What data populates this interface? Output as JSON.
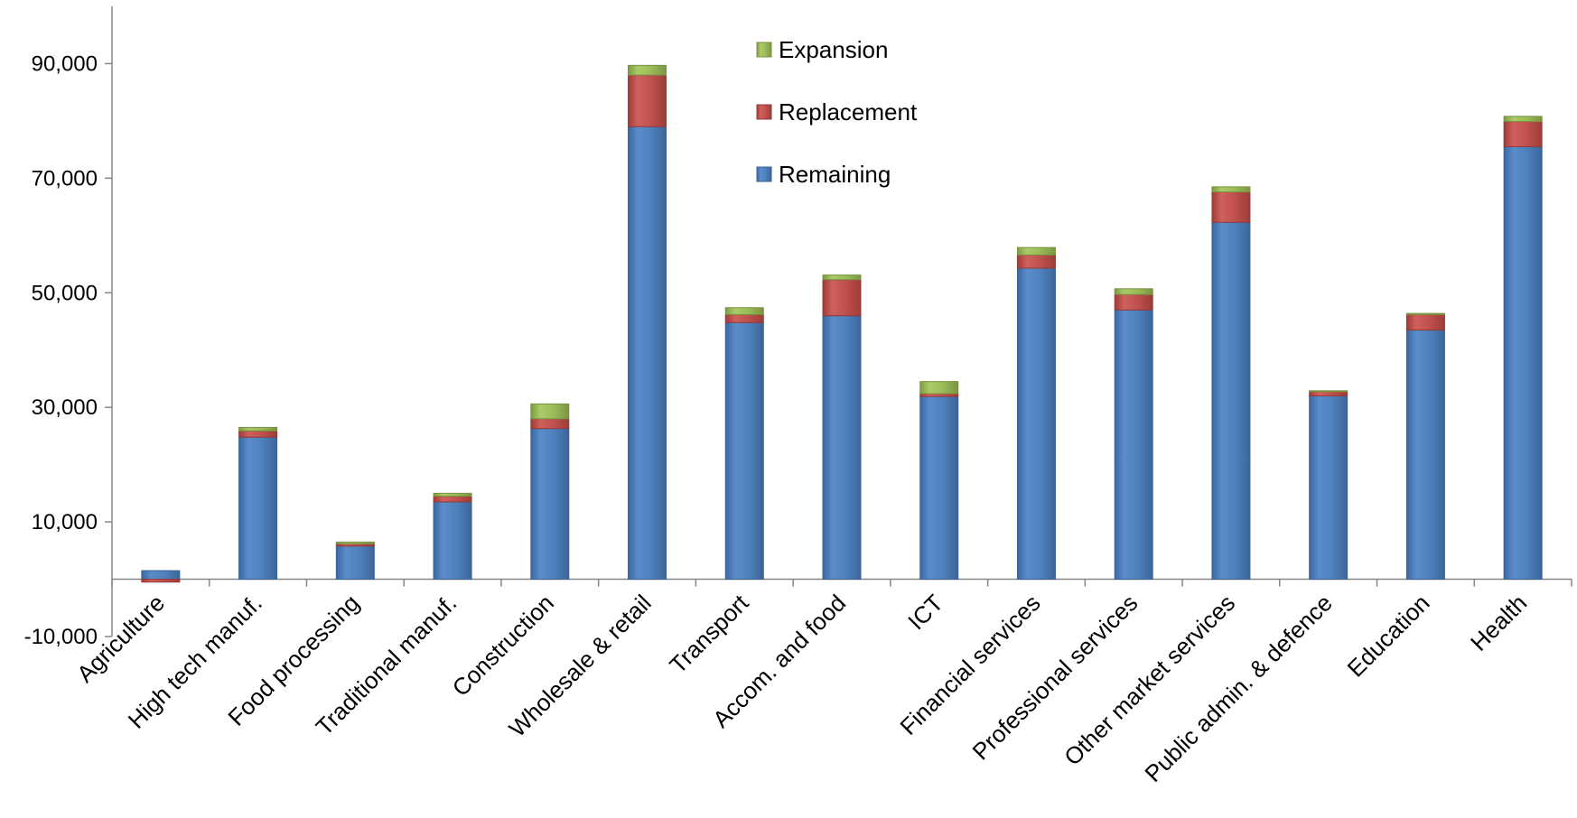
{
  "chart_data": {
    "type": "bar",
    "stacked": true,
    "title": "",
    "xlabel": "",
    "ylabel": "",
    "ylim": [
      -10000,
      100000
    ],
    "yticks": [
      -10000,
      10000,
      30000,
      50000,
      70000,
      90000
    ],
    "ytick_labels": [
      "-10,000",
      "10,000",
      "30,000",
      "50,000",
      "70,000",
      "90,000"
    ],
    "grid": false,
    "legend_position": "top-center",
    "categories": [
      "Agriculture",
      "High tech manuf.",
      "Food processing",
      "Traditional manuf.",
      "Construction",
      "Wholesale & retail",
      "Transport",
      "Accom. and food",
      "ICT",
      "Financial services",
      "Professional services",
      "Other market services",
      "Public admin. & defence",
      "Education",
      "Health"
    ],
    "series": [
      {
        "name": "Remaining",
        "color": "#4F81BD",
        "values": [
          1500,
          24800,
          5800,
          13500,
          26300,
          79000,
          44800,
          46000,
          31900,
          54300,
          47000,
          62300,
          32000,
          43500,
          75500
        ]
      },
      {
        "name": "Replacement",
        "color": "#C0504D",
        "values": [
          -500,
          1100,
          400,
          1000,
          1700,
          9000,
          1400,
          6300,
          500,
          2300,
          2700,
          5300,
          800,
          2700,
          4400
        ]
      },
      {
        "name": "Expansion",
        "color": "#9BBB59",
        "values": [
          0,
          600,
          300,
          500,
          2600,
          1700,
          1200,
          800,
          2100,
          1300,
          1000,
          900,
          100,
          200,
          900
        ]
      }
    ],
    "legend": [
      "Expansion",
      "Replacement",
      "Remaining"
    ]
  }
}
